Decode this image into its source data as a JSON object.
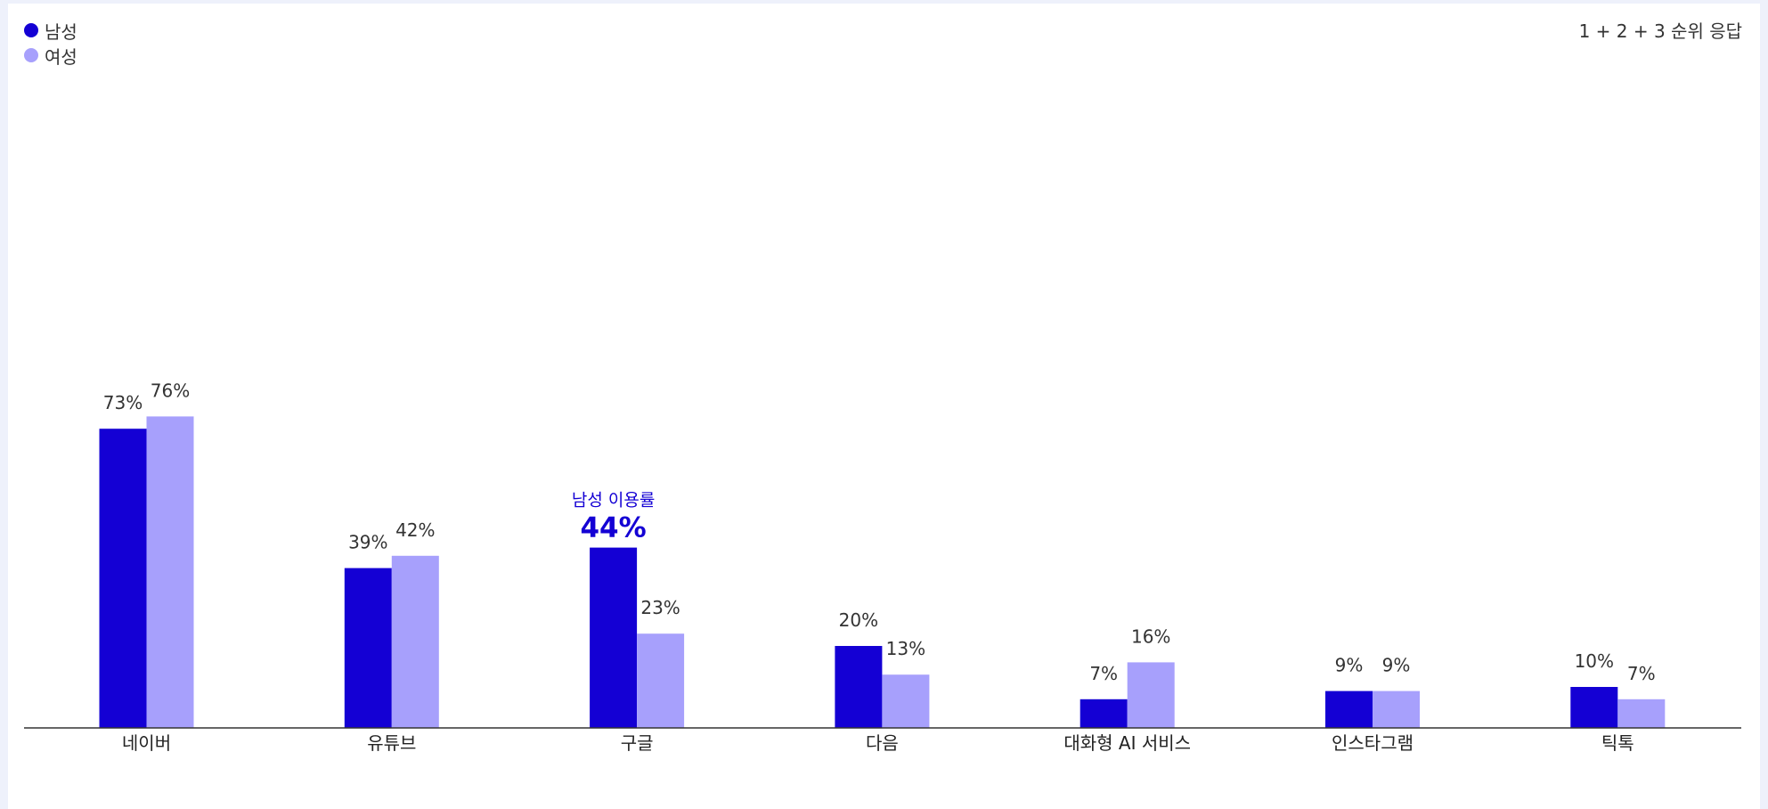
{
  "colors": {
    "male": "#1400d4",
    "female": "#a7a0fc",
    "axis": "#333333",
    "highlight_text": "#1400d4"
  },
  "legend": {
    "male_label": "남성",
    "female_label": "여성"
  },
  "note": "1 + 2 + 3 순위 응답",
  "chart_data": {
    "type": "bar",
    "categories": [
      "네이버",
      "유튜브",
      "구글",
      "다음",
      "대화형 AI 서비스",
      "인스타그램",
      "틱톡"
    ],
    "series": [
      {
        "name": "남성",
        "values": [
          73,
          39,
          44,
          20,
          7,
          9,
          10
        ]
      },
      {
        "name": "여성",
        "values": [
          76,
          42,
          23,
          13,
          16,
          9,
          7
        ]
      }
    ],
    "value_suffix": "%",
    "ylim": [
      0,
      100
    ],
    "grid": false,
    "legend_position": "top-left",
    "highlight": {
      "category": "구글",
      "series": "남성",
      "caption": "남성 이용률",
      "value_label": "44%"
    }
  }
}
